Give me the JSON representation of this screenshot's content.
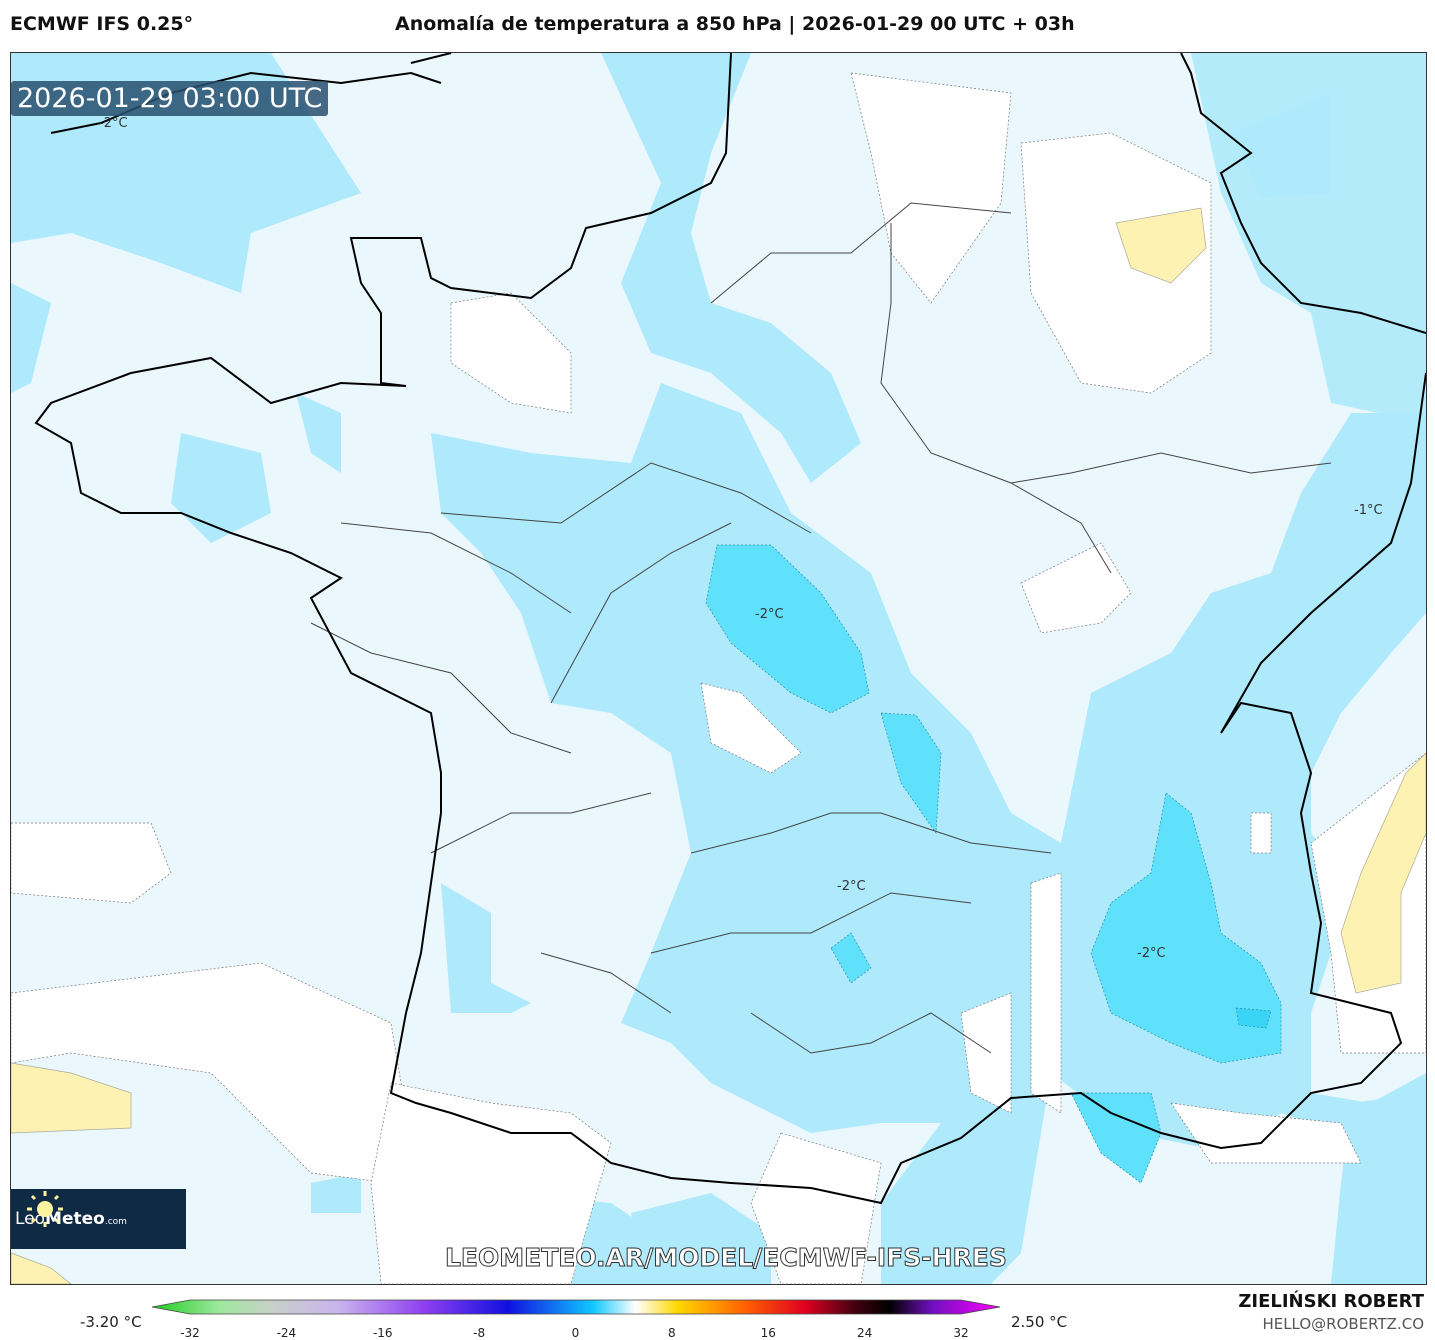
{
  "header": {
    "model": "ECMWF IFS 0.25°",
    "title": "Anomalía de temperatura a 850 hPa | 2026-01-29 00 UTC + 03h"
  },
  "map": {
    "timestamp": "2026-01-29 03:00 UTC",
    "contour_labels": [
      "-2°C",
      "-2°C",
      "-2°C",
      "-2°C",
      "-1°C"
    ],
    "watermark": "LEOMETEO.AR/MODEL/ECMWF-IFS-HRES",
    "logo": {
      "brand_light": "Leo",
      "brand_bold": "Meteo",
      "suffix": ".com",
      "icon": "sun-icon"
    },
    "colors": {
      "background": "#eaf7fd",
      "anomaly_-1": "#aeeafb",
      "anomaly_-2": "#5fe1fb",
      "anomaly_pos": "#fdf2b2",
      "near_zero": "#ffffff"
    }
  },
  "colorbar": {
    "min_label": "-3.20 °C",
    "max_label": "2.50 °C",
    "ticks": [
      "-32",
      "-24",
      "-16",
      "-8",
      "0",
      "8",
      "16",
      "24",
      "32"
    ],
    "range": [
      -32,
      32
    ]
  },
  "footer": {
    "author": "ZIELIŃSKI ROBERT",
    "email": "HELLO@ROBERTZ.CO"
  }
}
